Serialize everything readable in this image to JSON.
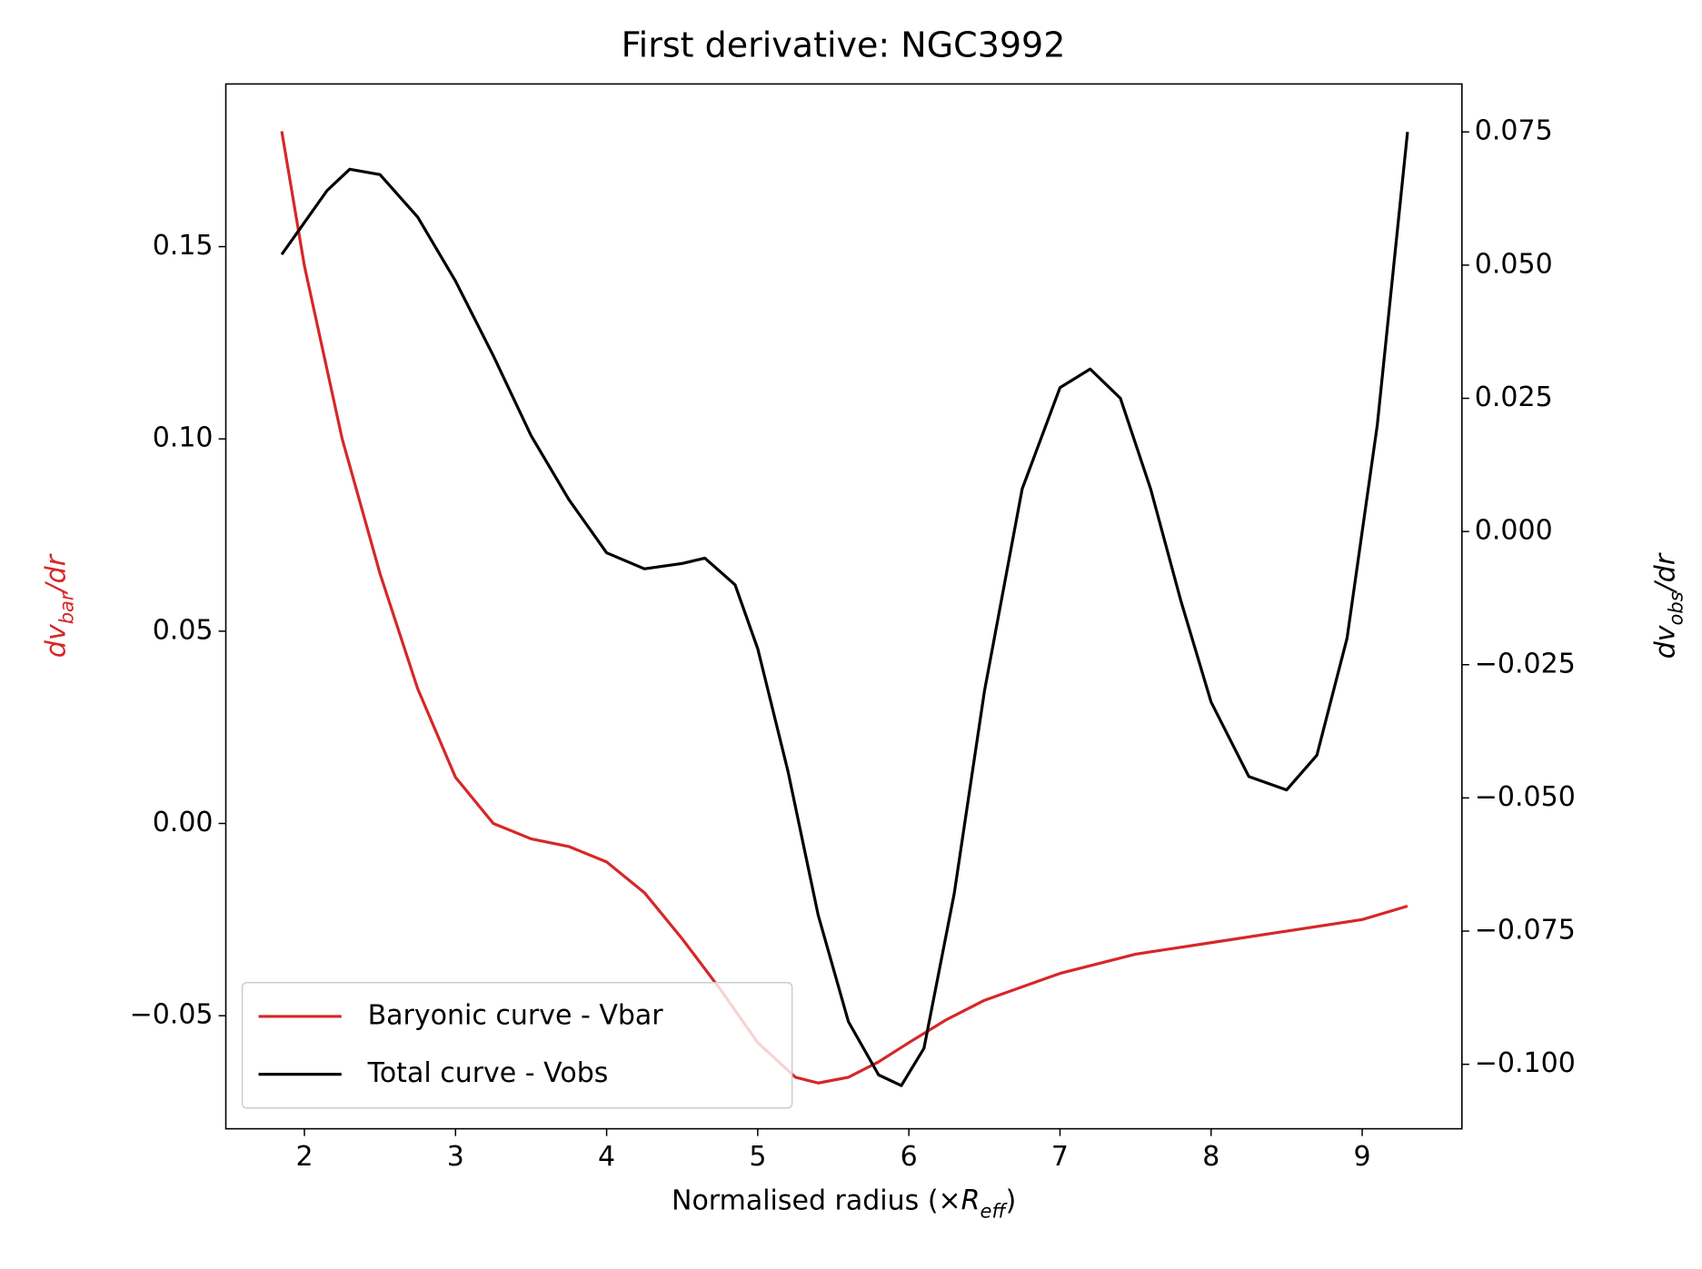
{
  "chart_data": {
    "type": "line",
    "title": "First derivative: NGC3992",
    "xlabel": [
      "Normalised radius (×",
      "R",
      "eff",
      ")"
    ],
    "ylabel": [
      "dv",
      "bar",
      "/dr"
    ],
    "y2label": [
      "dv",
      "obs",
      "/dr"
    ],
    "xlim": [
      1.48,
      9.66
    ],
    "xticks": [
      2,
      3,
      4,
      5,
      6,
      7,
      8,
      9
    ],
    "ylim": [
      -0.0794,
      0.1923
    ],
    "yticks": [
      {
        "value": -0.05,
        "label": "−0.05"
      },
      {
        "value": 0,
        "label": "0.00"
      },
      0.05,
      {
        "value": 0.1,
        "label": "0.10"
      },
      0.15
    ],
    "y2lim": [
      -0.1121,
      0.084
    ],
    "y2ticks": [
      {
        "value": -0.1,
        "label": "−0.100"
      },
      {
        "value": -0.075,
        "label": "−0.075"
      },
      {
        "value": -0.05,
        "label": "−0.050"
      },
      {
        "value": -0.025,
        "label": "−0.025"
      },
      {
        "value": 0,
        "label": "0.000"
      },
      0.025,
      {
        "value": 0.05,
        "label": "0.050"
      },
      0.075
    ],
    "legend": "lower left",
    "series": [
      {
        "name": "Baryonic curve - Vbar",
        "color": "#d62728",
        "axis": "y",
        "x": [
          1.85,
          2.0,
          2.25,
          2.5,
          2.75,
          3.0,
          3.25,
          3.5,
          3.75,
          4.0,
          4.25,
          4.5,
          4.75,
          5.0,
          5.25,
          5.4,
          5.6,
          5.8,
          6.0,
          6.25,
          6.5,
          7.0,
          7.5,
          8.0,
          8.5,
          9.0,
          9.3
        ],
        "values": [
          0.18,
          0.145,
          0.1,
          0.065,
          0.035,
          0.012,
          0.0,
          -0.004,
          -0.006,
          -0.01,
          -0.018,
          -0.03,
          -0.043,
          -0.057,
          -0.066,
          -0.0675,
          -0.066,
          -0.062,
          -0.057,
          -0.051,
          -0.046,
          -0.039,
          -0.034,
          -0.031,
          -0.028,
          -0.025,
          -0.0215
        ]
      },
      {
        "name": "Total curve - Vobs",
        "color": "#000000",
        "axis": "y2",
        "x": [
          1.85,
          2.0,
          2.15,
          2.3,
          2.5,
          2.75,
          3.0,
          3.25,
          3.5,
          3.75,
          4.0,
          4.25,
          4.5,
          4.65,
          4.85,
          5.0,
          5.2,
          5.4,
          5.6,
          5.8,
          5.95,
          6.1,
          6.3,
          6.5,
          6.75,
          7.0,
          7.2,
          7.4,
          7.6,
          7.8,
          8.0,
          8.25,
          8.5,
          8.7,
          8.9,
          9.1,
          9.3
        ],
        "values": [
          0.052,
          0.058,
          0.064,
          0.068,
          0.067,
          0.059,
          0.047,
          0.033,
          0.018,
          0.006,
          -0.004,
          -0.007,
          -0.006,
          -0.005,
          -0.01,
          -0.022,
          -0.045,
          -0.072,
          -0.092,
          -0.102,
          -0.104,
          -0.097,
          -0.068,
          -0.03,
          0.008,
          0.027,
          0.0305,
          0.025,
          0.008,
          -0.013,
          -0.032,
          -0.046,
          -0.0485,
          -0.042,
          -0.02,
          0.02,
          0.075
        ]
      }
    ]
  }
}
